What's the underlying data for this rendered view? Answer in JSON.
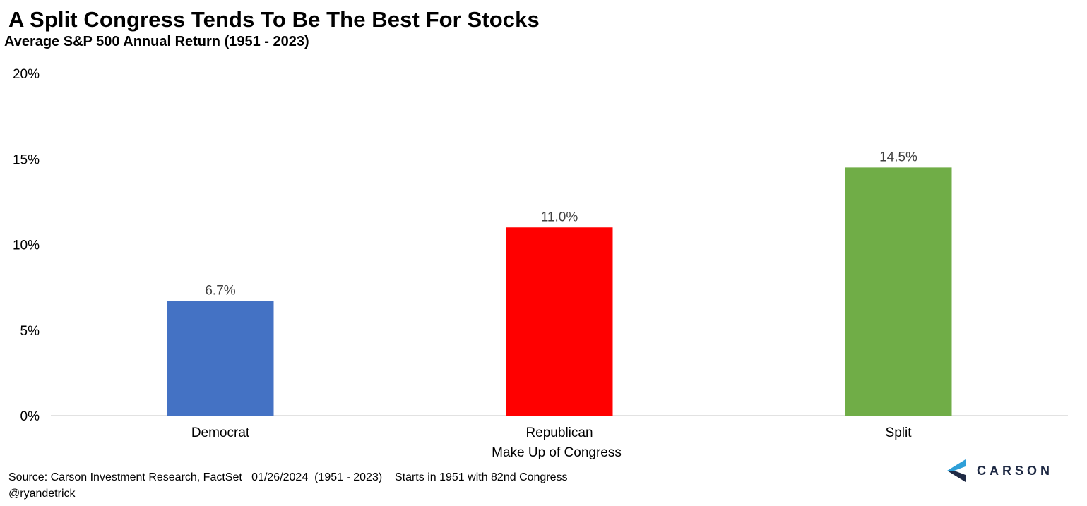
{
  "header": {
    "title": "A Split Congress Tends To Be The Best For Stocks",
    "subtitle": "Average S&P 500 Annual Return (1951 - 2023)"
  },
  "chart_data": {
    "type": "bar",
    "categories": [
      "Democrat",
      "Republican",
      "Split"
    ],
    "values": [
      6.7,
      11.0,
      14.5
    ],
    "value_labels": [
      "6.7%",
      "11.0%",
      "14.5%"
    ],
    "colors": [
      "#4472C4",
      "#FF0000",
      "#70AD47"
    ],
    "xlabel": "Make Up of Congress",
    "ylabel": "",
    "ylim": [
      0,
      20
    ],
    "yticks": [
      0,
      5,
      10,
      15,
      20
    ],
    "ytick_labels": [
      "0%",
      "5%",
      "10%",
      "15%",
      "20%"
    ],
    "grid": false,
    "legend": "none"
  },
  "footer": {
    "source": "Source: Carson Investment Research, FactSet   01/26/2024  (1951 - 2023)    Starts in 1951 with 82nd Congress",
    "handle": "@ryandetrick"
  },
  "brand": {
    "name": "CARSON",
    "colors": {
      "primary": "#1f2a44",
      "accent": "#2e9fd8"
    }
  }
}
